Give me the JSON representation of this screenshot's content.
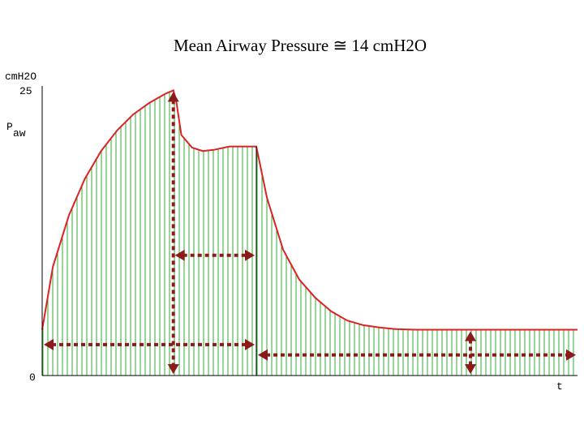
{
  "chart_data": {
    "type": "area",
    "title": "Mean Airway Pressure ≅ 14 cmH2O",
    "y_unit": "cmH2O",
    "ylabel_main": "P",
    "ylabel_sub": "aw",
    "xlabel": "t",
    "ylim": [
      0,
      25
    ],
    "yticks": [
      "25",
      "0"
    ],
    "series": [
      {
        "x": [
          0.0,
          0.02,
          0.05,
          0.08,
          0.11,
          0.14,
          0.17,
          0.2,
          0.23,
          0.245,
          0.25,
          0.26,
          0.28,
          0.3,
          0.32,
          0.35,
          0.38,
          0.4,
          0.42,
          0.45,
          0.48,
          0.51,
          0.54,
          0.57,
          0.6,
          0.63,
          0.66,
          0.7,
          0.75,
          0.8,
          0.85,
          0.9,
          0.95,
          1.0
        ],
        "values": [
          4.0,
          9.5,
          14.0,
          17.2,
          19.6,
          21.4,
          22.8,
          23.8,
          24.6,
          24.9,
          24.1,
          21.0,
          19.9,
          19.6,
          19.7,
          20.0,
          20.0,
          20.0,
          15.5,
          11.0,
          8.4,
          6.8,
          5.6,
          4.8,
          4.4,
          4.2,
          4.05,
          4.0,
          4.0,
          4.0,
          4.0,
          4.0,
          4.0,
          4.0
        ]
      }
    ],
    "colors": {
      "curve": "#dd2222",
      "fill_lines": "#33aa33",
      "arrows": "#8b1a1a",
      "axis": "#000000"
    },
    "annotations": [
      {
        "type": "double-arrow",
        "orientation": "vertical",
        "x": 0.245,
        "y_from": 0,
        "y_to": 24.9
      },
      {
        "type": "double-arrow",
        "orientation": "horizontal",
        "x_from": 0.245,
        "x_to": 0.4,
        "y": 10.5
      },
      {
        "type": "double-arrow",
        "orientation": "horizontal",
        "x_from": 0.0,
        "x_to": 0.4,
        "y": 2.7
      },
      {
        "type": "double-arrow",
        "orientation": "horizontal",
        "x_from": 0.4,
        "x_to": 1.0,
        "y": 1.8
      },
      {
        "type": "double-arrow",
        "orientation": "vertical",
        "x": 0.8,
        "y_from": 0,
        "y_to": 4.0
      }
    ]
  }
}
